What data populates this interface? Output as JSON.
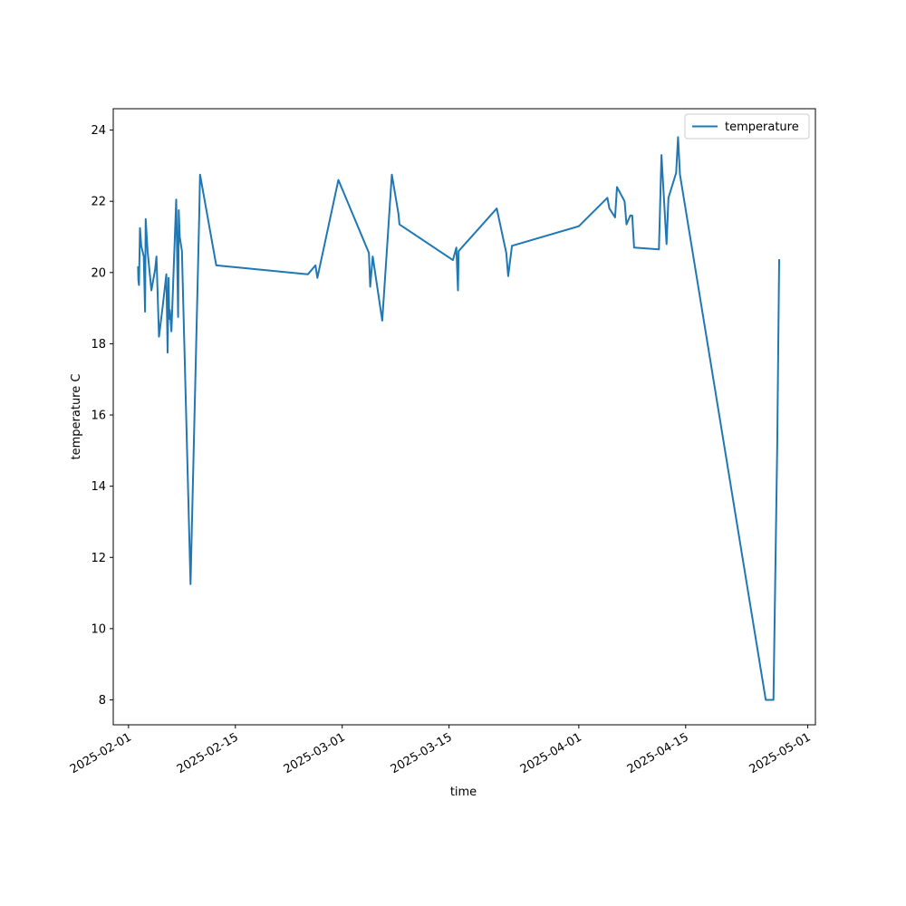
{
  "chart_data": {
    "type": "line",
    "xlabel": "time",
    "ylabel": "temperature C",
    "x_axis_type": "date",
    "xlim": [
      "2025-01-30",
      "2025-05-02"
    ],
    "ylim": [
      7.3,
      24.6
    ],
    "y_ticks": [
      8,
      10,
      12,
      14,
      16,
      18,
      20,
      22,
      24
    ],
    "x_ticks": [
      "2025-02-01",
      "2025-02-15",
      "2025-03-01",
      "2025-03-15",
      "2025-04-01",
      "2025-04-15",
      "2025-05-01"
    ],
    "grid": false,
    "legend_position": "top-right",
    "series": [
      {
        "name": "temperature",
        "color": "#1f77b4",
        "points": [
          [
            "2025-02-02 06:00",
            20.15
          ],
          [
            "2025-02-02 07:00",
            19.8
          ],
          [
            "2025-02-02 09:00",
            19.65
          ],
          [
            "2025-02-02 12:00",
            21.25
          ],
          [
            "2025-02-02 16:00",
            20.75
          ],
          [
            "2025-02-02 20:00",
            20.6
          ],
          [
            "2025-02-03 00:00",
            20.45
          ],
          [
            "2025-02-03 04:00",
            18.9
          ],
          [
            "2025-02-03 06:00",
            21.5
          ],
          [
            "2025-02-03 12:00",
            20.6
          ],
          [
            "2025-02-04 00:00",
            19.5
          ],
          [
            "2025-02-04 12:00",
            20.1
          ],
          [
            "2025-02-04 16:00",
            20.45
          ],
          [
            "2025-02-05 00:00",
            18.2
          ],
          [
            "2025-02-05 12:00",
            19.1
          ],
          [
            "2025-02-05 23:00",
            19.95
          ],
          [
            "2025-02-06 03:00",
            17.75
          ],
          [
            "2025-02-06 06:00",
            19.85
          ],
          [
            "2025-02-06 08:00",
            18.7
          ],
          [
            "2025-02-06 10:00",
            18.95
          ],
          [
            "2025-02-06 12:00",
            18.7
          ],
          [
            "2025-02-06 15:00",
            18.35
          ],
          [
            "2025-02-07 06:00",
            22.05
          ],
          [
            "2025-02-07 12:00",
            18.75
          ],
          [
            "2025-02-07 14:00",
            21.75
          ],
          [
            "2025-02-07 17:00",
            21.0
          ],
          [
            "2025-02-08 00:00",
            20.6
          ],
          [
            "2025-02-09 03:00",
            11.25
          ],
          [
            "2025-02-10 06:00",
            21.5
          ],
          [
            "2025-02-10 09:00",
            22.75
          ],
          [
            "2025-02-12 12:00",
            20.2
          ],
          [
            "2025-02-24 12:00",
            19.95
          ],
          [
            "2025-02-25 12:00",
            20.2
          ],
          [
            "2025-02-25 18:00",
            19.85
          ],
          [
            "2025-02-28 12:00",
            22.6
          ],
          [
            "2025-03-04 12:00",
            20.55
          ],
          [
            "2025-03-04 16:00",
            19.6
          ],
          [
            "2025-03-05 00:00",
            20.45
          ],
          [
            "2025-03-06 06:00",
            18.65
          ],
          [
            "2025-03-07 12:00",
            22.75
          ],
          [
            "2025-03-08 09:00",
            21.65
          ],
          [
            "2025-03-08 12:00",
            21.35
          ],
          [
            "2025-03-15 12:00",
            20.35
          ],
          [
            "2025-03-15 23:00",
            20.7
          ],
          [
            "2025-03-16 04:00",
            19.5
          ],
          [
            "2025-03-16 06:00",
            20.6
          ],
          [
            "2025-03-21 06:00",
            21.8
          ],
          [
            "2025-03-22 12:00",
            20.55
          ],
          [
            "2025-03-22 18:00",
            19.9
          ],
          [
            "2025-03-23 06:00",
            20.75
          ],
          [
            "2025-04-01 00:00",
            21.3
          ],
          [
            "2025-04-04 18:00",
            22.1
          ],
          [
            "2025-04-05 00:00",
            21.8
          ],
          [
            "2025-04-05 18:00",
            21.55
          ],
          [
            "2025-04-06 00:00",
            22.4
          ],
          [
            "2025-04-07 00:00",
            22.0
          ],
          [
            "2025-04-07 06:00",
            21.35
          ],
          [
            "2025-04-07 18:00",
            21.6
          ],
          [
            "2025-04-08 00:00",
            21.6
          ],
          [
            "2025-04-08 06:00",
            20.7
          ],
          [
            "2025-04-11 12:00",
            20.65
          ],
          [
            "2025-04-11 20:00",
            23.3
          ],
          [
            "2025-04-12 12:00",
            20.8
          ],
          [
            "2025-04-12 18:00",
            22.1
          ],
          [
            "2025-04-13 18:00",
            22.8
          ],
          [
            "2025-04-14 00:00",
            23.8
          ],
          [
            "2025-04-14 06:00",
            22.75
          ],
          [
            "2025-04-25 12:00",
            8.0
          ],
          [
            "2025-04-26 12:00",
            8.0
          ],
          [
            "2025-04-27 00:00",
            15.2
          ],
          [
            "2025-04-27 06:00",
            20.35
          ]
        ]
      }
    ]
  }
}
